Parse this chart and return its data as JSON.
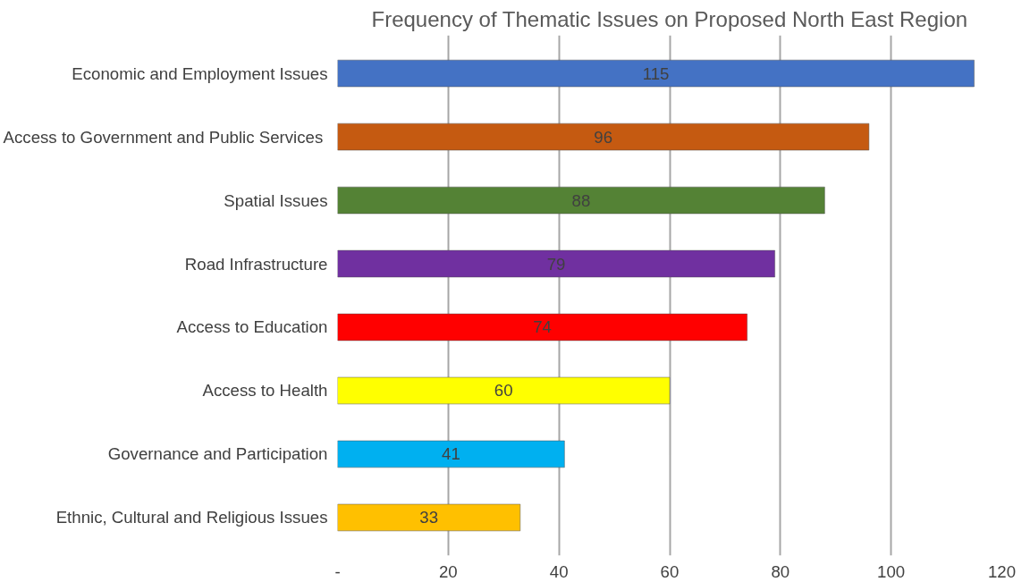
{
  "chart_data": {
    "type": "bar",
    "orientation": "horizontal",
    "title": "Frequency of Thematic Issues on Proposed North East Region",
    "categories": [
      "Economic and Employment Issues",
      "Access to Government and  Public Services",
      "Spatial Issues",
      "Road Infrastructure",
      "Access to Education",
      "Access to Health",
      "Governance and Participation",
      "Ethnic, Cultural and Religious Issues"
    ],
    "values": [
      115,
      96,
      88,
      79,
      74,
      60,
      41,
      33
    ],
    "colors": [
      "#4472c4",
      "#c55a11",
      "#548235",
      "#7030a0",
      "#ff0000",
      "#ffff00",
      "#00b0f0",
      "#ffc000"
    ],
    "xlim": [
      0,
      120
    ],
    "xticks": [
      {
        "value": 0,
        "label": "-"
      },
      20,
      40,
      60,
      80,
      100,
      120
    ],
    "grid": "x",
    "data_labels": true
  }
}
